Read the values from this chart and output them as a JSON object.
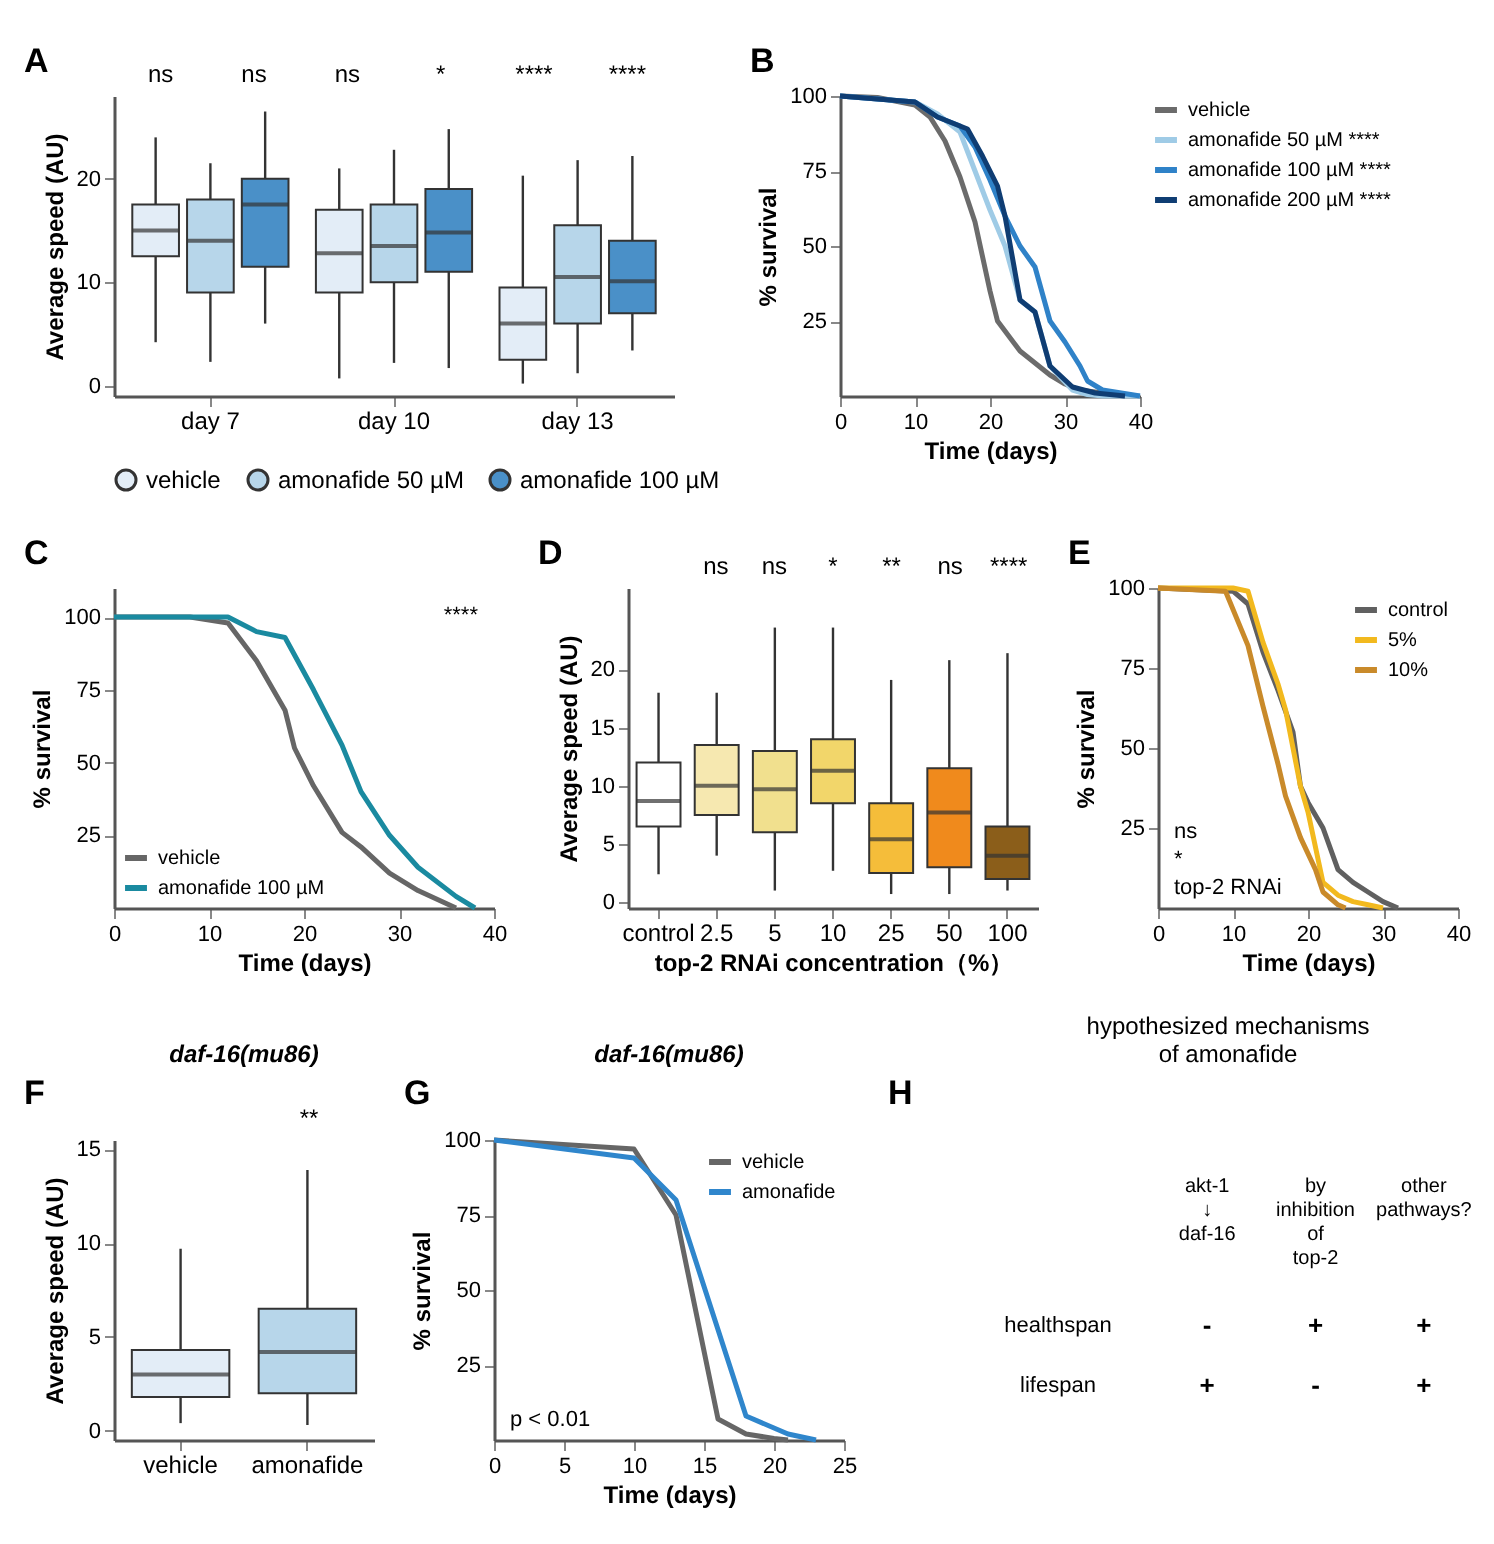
{
  "chart_data": [
    {
      "type": "box",
      "ylabel": "Average speed (AU)",
      "categories": [
        "day 7",
        "day 10",
        "day 13"
      ],
      "ylim": [
        -1,
        28
      ],
      "yticks": [
        0,
        10,
        20
      ],
      "legend": "bottom",
      "annotations": [
        "A",
        "ns",
        "ns",
        "ns",
        "*",
        "****",
        "****"
      ],
      "series": [
        {
          "name": "vehicle",
          "color": "#e3edf7",
          "boxes": [
            {
              "low": 4.2,
              "q1": 12.5,
              "median": 15,
              "q3": 17.5,
              "high": 24
            },
            {
              "low": 0.7,
              "q1": 9,
              "median": 12.8,
              "q3": 17,
              "high": 21
            },
            {
              "low": 0.2,
              "q1": 2.5,
              "median": 6,
              "q3": 9.5,
              "high": 20.3
            }
          ]
        },
        {
          "name": "amonafide 50 µM",
          "color": "#b7d6ea",
          "boxes": [
            {
              "low": 2.3,
              "q1": 9,
              "median": 14,
              "q3": 18,
              "high": 21.5
            },
            {
              "low": 2.2,
              "q1": 10,
              "median": 13.5,
              "q3": 17.5,
              "high": 22.8
            },
            {
              "low": 1.2,
              "q1": 6,
              "median": 10.5,
              "q3": 15.5,
              "high": 21.8
            }
          ]
        },
        {
          "name": "amonafide 100 µM",
          "color": "#4a90c8",
          "boxes": [
            {
              "low": 6,
              "q1": 11.5,
              "median": 17.5,
              "q3": 20,
              "high": 26.5
            },
            {
              "low": 1.7,
              "q1": 11,
              "median": 14.8,
              "q3": 19,
              "high": 24.8
            },
            {
              "low": 3.4,
              "q1": 7,
              "median": 10.1,
              "q3": 14,
              "high": 22.2
            }
          ]
        }
      ]
    },
    {
      "type": "line",
      "xlabel": "Time (days)",
      "ylabel": "% survival",
      "xlim": [
        0,
        40
      ],
      "xticks": [
        0,
        10,
        20,
        30,
        40
      ],
      "ylim": [
        0,
        100
      ],
      "yticks": [
        25,
        50,
        75,
        100
      ],
      "legend": "right",
      "annotations": [
        "B"
      ],
      "series": [
        {
          "name": "vehicle",
          "color": "#6b6b6b",
          "x": [
            0,
            5,
            10,
            12,
            14,
            16,
            18,
            20,
            21,
            24,
            26,
            28,
            30,
            32,
            35,
            38
          ],
          "values": [
            100,
            99.5,
            97,
            93,
            85,
            73,
            58,
            35,
            25,
            15,
            11,
            7,
            4,
            2,
            1,
            0
          ]
        },
        {
          "name": "amonafide 50 µM ****",
          "color": "#9fcbe6",
          "x": [
            0,
            10,
            13,
            16,
            18,
            20,
            22,
            24,
            26,
            28,
            31,
            33,
            35,
            40
          ],
          "values": [
            100,
            98,
            94,
            88,
            75,
            62,
            50,
            32,
            28,
            10,
            2,
            0.5,
            0,
            0
          ]
        },
        {
          "name": "amonafide 100 µM ****",
          "color": "#2f82c8",
          "x": [
            0,
            10,
            13,
            16,
            18,
            20,
            22,
            24,
            26,
            28,
            30,
            32,
            33,
            35,
            40
          ],
          "values": [
            100,
            98,
            93,
            90,
            83,
            72,
            60,
            50,
            43,
            25,
            18,
            10,
            5,
            2,
            0
          ]
        },
        {
          "name": "amonafide 200 µM ****",
          "color": "#0f3d73",
          "x": [
            0,
            10,
            13,
            15,
            17,
            19,
            21,
            22,
            24,
            26,
            28,
            31,
            34,
            38
          ],
          "values": [
            100,
            98,
            93,
            91,
            89,
            80,
            70,
            60,
            32,
            28,
            10,
            3,
            1,
            0
          ]
        }
      ]
    },
    {
      "type": "line",
      "xlabel": "Time (days)",
      "ylabel": "% survival",
      "xlim": [
        0,
        40
      ],
      "xticks": [
        0,
        10,
        20,
        30,
        40
      ],
      "ylim": [
        0,
        110
      ],
      "yticks": [
        25,
        50,
        75,
        100
      ],
      "legend": "bottom left",
      "annotations": [
        "C",
        "****"
      ],
      "series": [
        {
          "name": "vehicle",
          "color": "#666666",
          "x": [
            0,
            8,
            12,
            15,
            18,
            19,
            21,
            24,
            26,
            29,
            32,
            36
          ],
          "values": [
            100,
            100,
            98,
            85,
            68,
            55,
            42,
            26,
            21,
            12,
            6,
            0
          ]
        },
        {
          "name": "amonafide 100 µM",
          "color": "#1a8aa0",
          "x": [
            0,
            12,
            15,
            18,
            21,
            24,
            26,
            29,
            32,
            36,
            38
          ],
          "values": [
            100,
            100,
            95,
            93,
            75,
            56,
            40,
            25,
            14,
            4,
            0
          ]
        }
      ]
    },
    {
      "type": "box",
      "xlabel": "top-2 RNAi concentration（%）",
      "ylabel": "Average speed (AU)",
      "categories": [
        "control",
        "2.5",
        "5",
        "10",
        "25",
        "50",
        "100"
      ],
      "colors": [
        "#ffffff",
        "#f6e8b0",
        "#f1e08e",
        "#f2d66a",
        "#f5bd3a",
        "#f08a1c",
        "#8b5e1a"
      ],
      "ylim": [
        -0.5,
        27
      ],
      "yticks": [
        0,
        5,
        10,
        15,
        20
      ],
      "annotations": [
        "D",
        "ns",
        "ns",
        "*",
        "**",
        "ns",
        "****"
      ],
      "boxes": [
        {
          "low": 2.4,
          "q1": 6.5,
          "median": 8.7,
          "q3": 12,
          "high": 18
        },
        {
          "low": 4,
          "q1": 7.5,
          "median": 10,
          "q3": 13.5,
          "high": 18
        },
        {
          "low": 1,
          "q1": 6,
          "median": 9.7,
          "q3": 13,
          "high": 23.6
        },
        {
          "low": 2.7,
          "q1": 8.5,
          "median": 11.3,
          "q3": 14,
          "high": 23.6
        },
        {
          "low": 0.7,
          "q1": 2.5,
          "median": 5.4,
          "q3": 8.5,
          "high": 19.1
        },
        {
          "low": 0.7,
          "q1": 3,
          "median": 7.7,
          "q3": 11.5,
          "high": 20.8
        },
        {
          "low": 1,
          "q1": 2,
          "median": 4,
          "q3": 6.5,
          "high": 21.4
        }
      ]
    },
    {
      "type": "line",
      "xlabel": "Time (days)",
      "ylabel": "% survival",
      "xlim": [
        0,
        40
      ],
      "xticks": [
        0,
        10,
        20,
        30,
        40
      ],
      "ylim": [
        0,
        100
      ],
      "yticks": [
        25,
        50,
        75,
        100
      ],
      "legend": "top right",
      "annotations": [
        "E",
        "ns",
        "*",
        "top-2 RNAi"
      ],
      "series": [
        {
          "name": "control",
          "color": "#606060",
          "x": [
            0,
            10,
            12,
            14,
            16,
            18,
            19,
            20,
            22,
            24,
            26,
            28,
            30,
            32
          ],
          "values": [
            100,
            99,
            95,
            80,
            68,
            55,
            38,
            33,
            25,
            12,
            8,
            5,
            2,
            0
          ]
        },
        {
          "name": "5%",
          "color": "#f2b91e",
          "x": [
            0,
            10,
            12,
            14,
            16,
            17,
            19,
            20,
            22,
            24,
            26,
            28,
            30
          ],
          "values": [
            100,
            100,
            99,
            83,
            70,
            62,
            38,
            30,
            8,
            4,
            2,
            1,
            0
          ]
        },
        {
          "name": "10%",
          "color": "#c98a2a",
          "x": [
            0,
            9,
            12,
            14,
            16,
            17,
            19,
            21,
            22,
            24,
            25
          ],
          "values": [
            100,
            99,
            82,
            63,
            45,
            35,
            22,
            12,
            5,
            1,
            0
          ]
        }
      ]
    },
    {
      "type": "box",
      "title": "daf-16(mu86)",
      "ylabel": "Average speed (AU)",
      "categories": [
        "vehicle",
        "amonafide"
      ],
      "colors": [
        "#e3edf7",
        "#b7d6ea"
      ],
      "ylim": [
        -0.5,
        15.5
      ],
      "yticks": [
        0,
        5,
        10,
        15
      ],
      "annotations": [
        "F",
        "**"
      ],
      "boxes": [
        {
          "low": 0.4,
          "q1": 1.8,
          "median": 3,
          "q3": 4.3,
          "high": 9.7
        },
        {
          "low": 0.3,
          "q1": 2,
          "median": 4.2,
          "q3": 6.5,
          "high": 13.9
        }
      ]
    },
    {
      "type": "line",
      "title": "daf-16(mu86)",
      "xlabel": "Time (days)",
      "ylabel": "% survival",
      "xlim": [
        0,
        25
      ],
      "xticks": [
        0,
        5,
        10,
        15,
        20,
        25
      ],
      "ylim": [
        0,
        100
      ],
      "yticks": [
        25,
        50,
        75,
        100
      ],
      "legend": "top right",
      "annotations": [
        "G",
        "p < 0.01"
      ],
      "series": [
        {
          "name": "vehicle",
          "color": "#666666",
          "x": [
            0,
            10,
            13,
            16,
            18,
            20,
            21
          ],
          "values": [
            100,
            97,
            75,
            7,
            2,
            0.5,
            0
          ]
        },
        {
          "name": "amonafide",
          "color": "#2f86cc",
          "x": [
            0,
            10,
            13,
            18,
            21,
            23
          ],
          "values": [
            100,
            94,
            80,
            8,
            2,
            0
          ]
        }
      ]
    },
    {
      "type": "other",
      "title": "hypothesized mechanisms of amonafide",
      "annotations": [
        "H"
      ],
      "categories": [
        "akt-1 ↓ daf-16",
        "by inhibition of top-2",
        "other pathways?"
      ],
      "y_categories": [
        "healthspan",
        "lifespan"
      ],
      "cell_labels": [
        [
          "-",
          "+",
          "+"
        ],
        [
          "+",
          "-",
          "+"
        ]
      ]
    }
  ]
}
